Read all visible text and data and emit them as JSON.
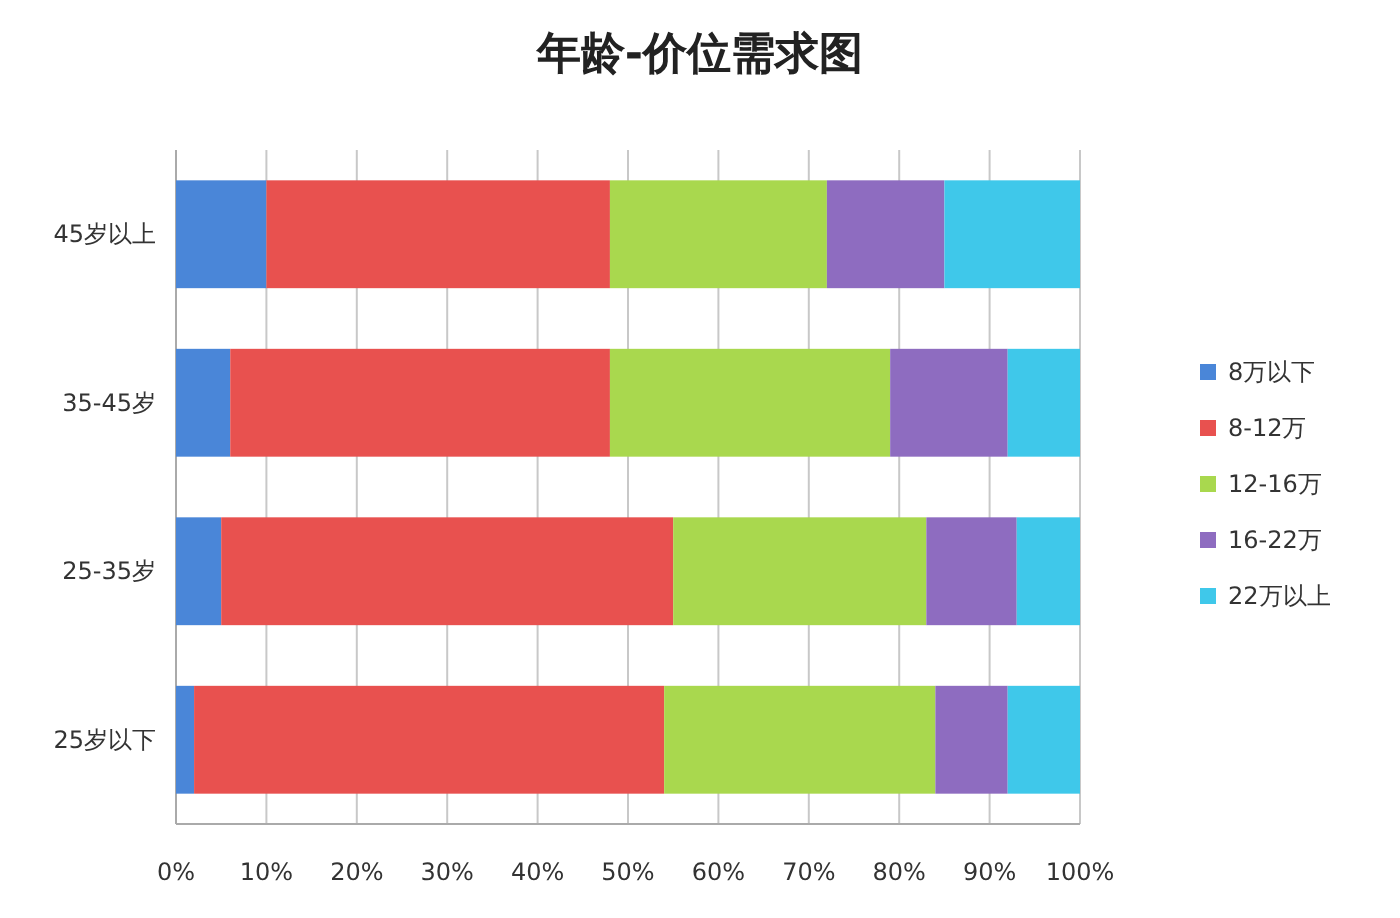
{
  "chart_data": {
    "type": "bar",
    "title": "年龄-价位需求图",
    "orientation": "horizontal",
    "stacked": true,
    "categories": [
      "45岁以上",
      "35-45岁",
      "25-35岁",
      "25岁以下"
    ],
    "series": [
      {
        "name": "8万以下",
        "color": "#4a86d8",
        "values": [
          10,
          6,
          5,
          2
        ]
      },
      {
        "name": "8-12万",
        "color": "#e8514f",
        "values": [
          38,
          42,
          50,
          52
        ]
      },
      {
        "name": "12-16万",
        "color": "#a9d84e",
        "values": [
          24,
          31,
          28,
          30
        ]
      },
      {
        "name": "16-22万",
        "color": "#8e6cc0",
        "values": [
          13,
          13,
          10,
          8
        ]
      },
      {
        "name": "22万以上",
        "color": "#3fc8ea",
        "values": [
          15,
          8,
          7,
          8
        ]
      }
    ],
    "xlim": [
      0,
      100
    ],
    "xticks": [
      {
        "value": 0,
        "label": "0%"
      },
      {
        "value": 10,
        "label": "10%"
      },
      {
        "value": 20,
        "label": "20%"
      },
      {
        "value": 30,
        "label": "30%"
      },
      {
        "value": 40,
        "label": "40%"
      },
      {
        "value": 50,
        "label": "50%"
      },
      {
        "value": 60,
        "label": "60%"
      },
      {
        "value": 70,
        "label": "70%"
      },
      {
        "value": 80,
        "label": "80%"
      },
      {
        "value": 90,
        "label": "90%"
      },
      {
        "value": 100,
        "label": "100%"
      }
    ],
    "grid": "x",
    "legend": "right"
  }
}
